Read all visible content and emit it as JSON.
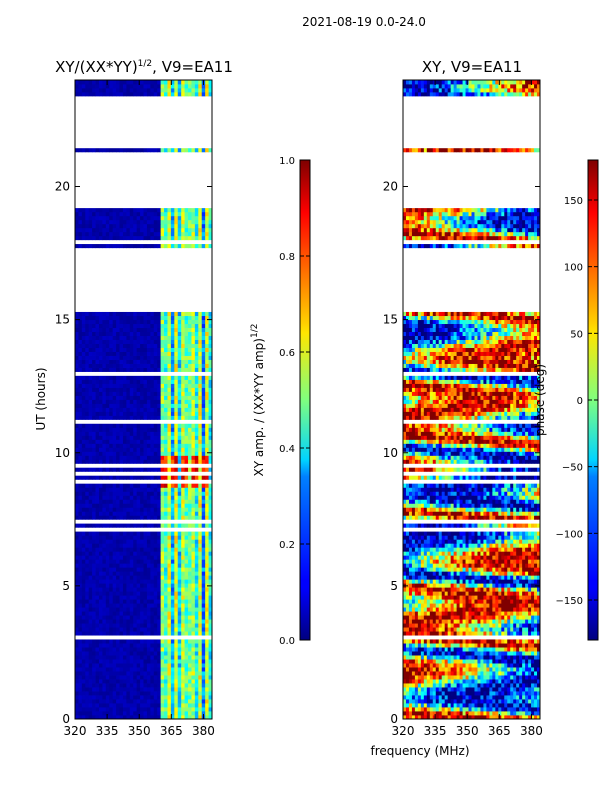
{
  "suptitle": "2021-08-19 0.0-24.0",
  "xlabel": "frequency (MHz)",
  "chart_data": [
    {
      "type": "heatmap",
      "title": "XY/(XX*YY)$^{1/2}$, V9=EA11",
      "title_main": "XY/(XX*YY)",
      "title_sup": "1/2",
      "title_rest": ", V9=EA11",
      "xlabel": "frequency (MHz)",
      "ylabel": "UT (hours)",
      "xlim": [
        320,
        384
      ],
      "ylim": [
        0,
        24
      ],
      "xticks": [
        320,
        335,
        350,
        365,
        380
      ],
      "yticks": [
        0,
        5,
        10,
        15,
        20
      ],
      "colormap": "jet",
      "colorbar": {
        "label_main": "XY amp. / (XX*YY amp)",
        "label_sup": "1/2",
        "range": [
          0.0,
          1.0
        ],
        "ticks": [
          "0.0",
          "0.2",
          "0.4",
          "0.6",
          "0.8",
          "1.0"
        ]
      },
      "gaps_hours": [
        [
          19.2,
          21.35
        ],
        [
          21.65,
          23.35
        ],
        [
          15.35,
          17.6
        ]
      ],
      "active_band_mhz": [
        360,
        384
      ],
      "bright_band_hours": [
        8.7,
        9.9
      ]
    },
    {
      "type": "heatmap",
      "title": "XY, V9=EA11",
      "xlabel": "frequency (MHz)",
      "ylabel": "",
      "xlim": [
        320,
        384
      ],
      "ylim": [
        0,
        24
      ],
      "xticks": [
        320,
        335,
        350,
        365,
        380
      ],
      "yticks": [
        0,
        5,
        10,
        15,
        20
      ],
      "colormap": "jet",
      "colorbar": {
        "label_main": "phase (deg)",
        "range": [
          -180,
          180
        ],
        "ticks": [
          "−150",
          "−100",
          "−50",
          "0",
          "50",
          "100",
          "150"
        ],
        "tick_values": [
          -150,
          -100,
          -50,
          0,
          50,
          100,
          150
        ]
      },
      "gaps_hours": [
        [
          19.2,
          21.35
        ],
        [
          21.65,
          23.35
        ],
        [
          15.35,
          17.6
        ]
      ]
    }
  ]
}
